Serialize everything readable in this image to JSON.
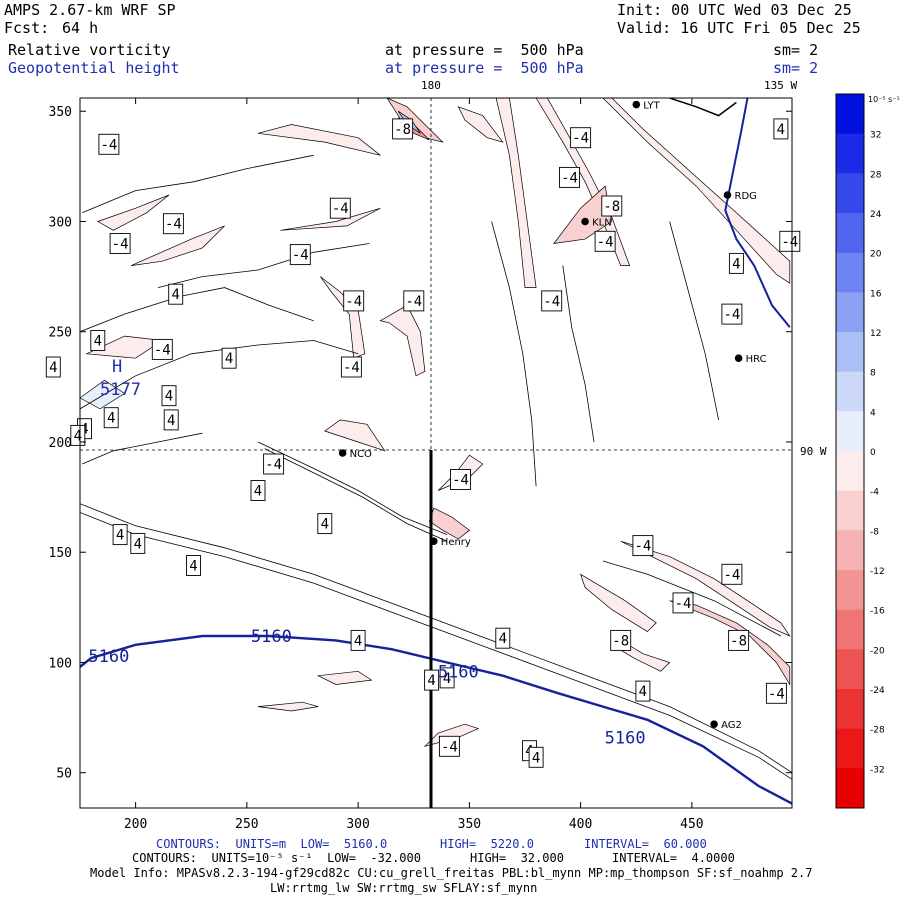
{
  "header": {
    "model": "AMPS 2.67-km WRF SP",
    "fcst_label": "Fcst:",
    "fcst_value": "64 h",
    "init": "Init: 00 UTC Wed 03 Dec 25",
    "valid": "Valid: 16 UTC Fri 05 Dec 25",
    "field1_name": "Relative vorticity",
    "field1_level": "at pressure =  500 hPa",
    "field1_sm": "sm= 2",
    "field2_name": "Geopotential height",
    "field2_level": "at pressure =  500 hPa",
    "field2_sm": "sm= 2"
  },
  "map_labels": {
    "lon_180": "180",
    "lon_135w": "135 W",
    "lat_90w": "90 W",
    "high_marker": "H",
    "high_value": "5177"
  },
  "stations": [
    {
      "name": "RDG",
      "x": 466,
      "y": 312
    },
    {
      "name": "KLN",
      "x": 402,
      "y": 300
    },
    {
      "name": "HRC",
      "x": 471,
      "y": 238
    },
    {
      "name": "NCO",
      "x": 293,
      "y": 195
    },
    {
      "name": "Henry",
      "x": 334,
      "y": 155
    },
    {
      "name": "AG2",
      "x": 460,
      "y": 72
    },
    {
      "name": "LYT",
      "x": 425,
      "y": 353
    }
  ],
  "colorbar": {
    "unit": "10⁻⁵ s⁻¹",
    "ticks": [
      "32",
      "28",
      "24",
      "20",
      "16",
      "12",
      "8",
      "4",
      "0",
      "-4",
      "-8",
      "-12",
      "-16",
      "-20",
      "-24",
      "-28",
      "-32"
    ],
    "positive_colors": [
      "#0010e0",
      "#1a2be8",
      "#3548ec",
      "#5066f0",
      "#6d84f2",
      "#8ba2f4",
      "#aabff6",
      "#cbd8fa",
      "#e8eefc"
    ],
    "negative_colors": [
      "#fcecec",
      "#f9d0d0",
      "#f6b2b2",
      "#f39494",
      "#f07474",
      "#ee5454",
      "#ec3434",
      "#ea1818",
      "#e80000"
    ]
  },
  "chart_data": {
    "type": "contour",
    "x_ticks": [
      200,
      250,
      300,
      350,
      400,
      450
    ],
    "y_ticks": [
      50,
      100,
      150,
      200,
      250,
      300,
      350
    ],
    "xlim": [
      175,
      495
    ],
    "ylim": [
      34,
      356
    ],
    "height_contours": [
      {
        "label": "5160",
        "points": [
          [
            175,
            98
          ],
          [
            180,
            102
          ],
          [
            200,
            108
          ],
          [
            230,
            112
          ],
          [
            260,
            112
          ],
          [
            290,
            110
          ],
          [
            315,
            106
          ],
          [
            340,
            100
          ],
          [
            365,
            94
          ],
          [
            390,
            86
          ],
          [
            410,
            80
          ],
          [
            430,
            74
          ],
          [
            455,
            62
          ],
          [
            480,
            44
          ],
          [
            495,
            36
          ]
        ]
      }
    ],
    "height_labels": [
      {
        "text": "5160",
        "x": 188,
        "y": 103
      },
      {
        "text": "5160",
        "x": 261,
        "y": 112
      },
      {
        "text": "5160",
        "x": 345,
        "y": 96
      },
      {
        "text": "5160",
        "x": 420,
        "y": 66
      }
    ],
    "vorticity_labels": [
      {
        "text": "-4",
        "x": 188,
        "y": 335
      },
      {
        "text": "-8",
        "x": 320,
        "y": 342
      },
      {
        "text": "-4",
        "x": 400,
        "y": 338
      },
      {
        "text": "-4",
        "x": 395,
        "y": 320
      },
      {
        "text": "-4",
        "x": 292,
        "y": 306
      },
      {
        "text": "-4",
        "x": 217,
        "y": 299
      },
      {
        "text": "-4",
        "x": 193,
        "y": 290
      },
      {
        "text": "-8",
        "x": 414,
        "y": 307
      },
      {
        "text": "-4",
        "x": 411,
        "y": 291
      },
      {
        "text": "-4",
        "x": 274,
        "y": 285
      },
      {
        "text": "-4",
        "x": 298,
        "y": 264
      },
      {
        "text": "-4",
        "x": 325,
        "y": 264
      },
      {
        "text": "-4",
        "x": 387,
        "y": 264
      },
      {
        "text": "-4",
        "x": 494,
        "y": 291
      },
      {
        "text": "-4",
        "x": 468,
        "y": 258
      },
      {
        "text": "-4",
        "x": 297,
        "y": 234
      },
      {
        "text": "-4",
        "x": 212,
        "y": 242
      },
      {
        "text": "-4",
        "x": 262,
        "y": 190
      },
      {
        "text": "-4",
        "x": 346,
        "y": 183
      },
      {
        "text": "-4",
        "x": 428,
        "y": 153
      },
      {
        "text": "-4",
        "x": 468,
        "y": 140
      },
      {
        "text": "-4",
        "x": 446,
        "y": 127
      },
      {
        "text": "-8",
        "x": 418,
        "y": 110
      },
      {
        "text": "-8",
        "x": 471,
        "y": 110
      },
      {
        "text": "-4",
        "x": 488,
        "y": 86
      },
      {
        "text": "-4",
        "x": 341,
        "y": 62
      },
      {
        "text": "4",
        "x": 490,
        "y": 342
      },
      {
        "text": "4",
        "x": 470,
        "y": 281
      },
      {
        "text": "4",
        "x": 218,
        "y": 267
      },
      {
        "text": "4",
        "x": 183,
        "y": 246
      },
      {
        "text": "4",
        "x": 242,
        "y": 238
      },
      {
        "text": "4",
        "x": 163,
        "y": 234
      },
      {
        "text": "4",
        "x": 215,
        "y": 221
      },
      {
        "text": "4",
        "x": 189,
        "y": 211
      },
      {
        "text": "4",
        "x": 177,
        "y": 206
      },
      {
        "text": "4",
        "x": 216,
        "y": 210
      },
      {
        "text": "4",
        "x": 174,
        "y": 203
      },
      {
        "text": "4",
        "x": 255,
        "y": 178
      },
      {
        "text": "4",
        "x": 285,
        "y": 163
      },
      {
        "text": "4",
        "x": 193,
        "y": 158
      },
      {
        "text": "4",
        "x": 201,
        "y": 154
      },
      {
        "text": "4",
        "x": 226,
        "y": 144
      },
      {
        "text": "4",
        "x": 300,
        "y": 110
      },
      {
        "text": "4",
        "x": 365,
        "y": 111
      },
      {
        "text": "4",
        "x": 333,
        "y": 92
      },
      {
        "text": "4",
        "x": 340,
        "y": 93
      },
      {
        "text": "4",
        "x": 428,
        "y": 87
      },
      {
        "text": "4",
        "x": 377,
        "y": 60
      },
      {
        "text": "4",
        "x": 380,
        "y": 57
      }
    ]
  },
  "footer": {
    "line1_a": "CONTOURS:  UNITS=m  LOW=  5160.0",
    "line1_b": "HIGH=  5220.0",
    "line1_c": "INTERVAL=  60.000",
    "line2_a": "CONTOURS:  UNITS=10⁻⁵ s⁻¹  LOW=  -32.000",
    "line2_b": "HIGH=  32.000",
    "line2_c": "INTERVAL=  4.0000",
    "line3": "Model Info: MPASv8.2.3-194-gf29cd82c CU:cu_grell_freitas PBL:bl_mynn MP:mp_thompson SF:sf_noahmp 2.7",
    "line4": "LW:rrtmg_lw SW:rrtmg_sw SFLAY:sf_mynn"
  }
}
